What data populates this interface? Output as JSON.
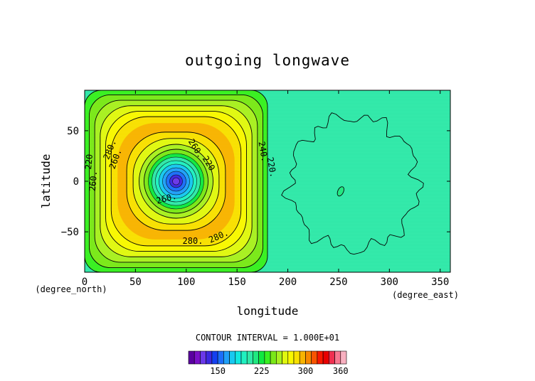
{
  "chart_data": {
    "type": "heatmap",
    "title": "outgoing longwave",
    "xlabel": "longitude",
    "ylabel": "latitude",
    "x_unit_label": "(degree_east)",
    "y_unit_label": "(degree_north)",
    "xlim": [
      0,
      360
    ],
    "ylim": [
      -90,
      90
    ],
    "x_ticks": [
      0,
      50,
      100,
      150,
      200,
      250,
      300,
      350
    ],
    "y_ticks": [
      -50,
      0,
      50
    ],
    "contour_interval_text": "CONTOUR INTERVAL = 1.000E+01",
    "colorbar": {
      "levels": [
        100,
        110,
        120,
        130,
        140,
        150,
        160,
        170,
        180,
        190,
        200,
        210,
        220,
        230,
        240,
        250,
        260,
        270,
        280,
        290,
        300,
        310,
        320,
        330,
        340,
        350,
        360,
        370
      ],
      "colors": [
        "#5a00a0",
        "#7a10c8",
        "#6a38e8",
        "#3c28e0",
        "#1440f0",
        "#1c6ef8",
        "#20a0f8",
        "#18c8f0",
        "#10e8e0",
        "#20f0c0",
        "#30e8a8",
        "#20e880",
        "#10e840",
        "#38f020",
        "#7ae818",
        "#a8f020",
        "#e0f810",
        "#f8f800",
        "#f8e000",
        "#f8b400",
        "#f88800",
        "#f85400",
        "#f81800",
        "#e80000",
        "#f03050",
        "#f87890",
        "#f8b0c0"
      ],
      "tick_labels": [
        "150",
        "225",
        "300",
        "360"
      ],
      "tick_values": [
        150,
        225,
        300,
        360
      ]
    },
    "contour_labels": [
      "220",
      "260.",
      "280.",
      "260.",
      "260.",
      "220",
      "240.",
      "220.",
      "280.",
      "280.",
      "260."
    ],
    "features": {
      "background_value": 230,
      "cold_center": {
        "lon": 90,
        "lat": 0,
        "min": 120
      },
      "warm_ring_value": 290,
      "box_lon": [
        0,
        180
      ],
      "secondary_patch": {
        "lon": 252,
        "lat": -10,
        "value": 215
      }
    }
  }
}
